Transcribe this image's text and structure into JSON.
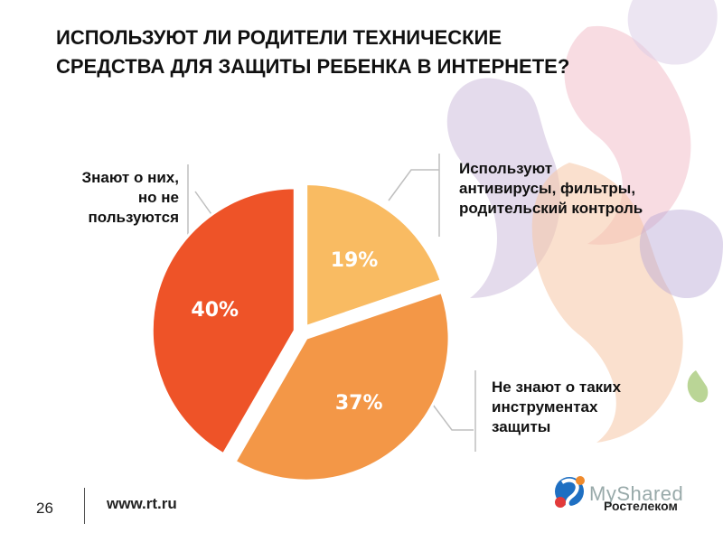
{
  "title_lines": [
    "ИСПОЛЬЗУЮТ ЛИ РОДИТЕЛИ ТЕХНИЧЕСКИЕ",
    "СРЕДСТВА ДЛЯ ЗАЩИТЫ РЕБЕНКА В ИНТЕРНЕТЕ?"
  ],
  "labels": {
    "left": [
      "Знают о них,",
      "но не",
      "пользуются"
    ],
    "right_top": [
      "Используют",
      "антивирусы, фильтры,",
      "родительский контроль"
    ],
    "right_bottom": [
      "Не знают о таких",
      "инструментах",
      "защиты"
    ]
  },
  "footer": {
    "page_number": "26",
    "url": "www.rt.ru",
    "brand": "Ростелеком",
    "watermark": "MyShared"
  },
  "colors": {
    "slice_used": "#F9BB62",
    "slice_not_aware": "#F39747",
    "slice_aware_not_using": "#EE5328"
  },
  "chart_data": {
    "type": "pie",
    "title": "ИСПОЛЬЗУЮТ ЛИ РОДИТЕЛИ ТЕХНИЧЕСКИЕ СРЕДСТВА ДЛЯ ЗАЩИТЫ РЕБЕНКА В ИНТЕРНЕТЕ?",
    "slices": [
      {
        "label": "Используют антивирусы, фильтры, родительский контроль",
        "value": 19,
        "value_label": "19%",
        "color": "#F9BB62"
      },
      {
        "label": "Не знают о таких инструментах защиты",
        "value": 37,
        "value_label": "37%",
        "color": "#F39747"
      },
      {
        "label": "Знают о них, но не пользуются",
        "value": 40,
        "value_label": "40%",
        "color": "#EE5328"
      }
    ],
    "legend": "none"
  }
}
